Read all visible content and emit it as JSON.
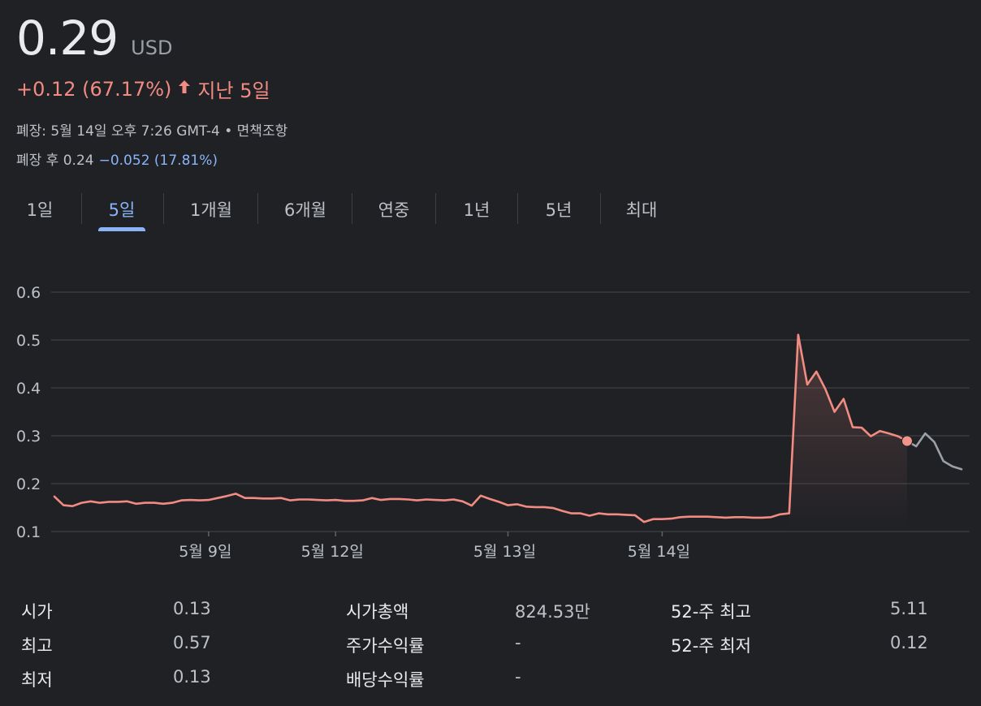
{
  "quote": {
    "price": "0.29",
    "currency": "USD",
    "change": "+0.12 (67.17%)",
    "period": "지난 5일",
    "close_info": "폐장: 5월 14일 오후 7:26 GMT-4 • 면책조항",
    "after_hours_label": "폐장 후 0.24",
    "after_hours_change": "−0.052 (17.81%)"
  },
  "tabs": [
    "1일",
    "5일",
    "1개월",
    "6개월",
    "연중",
    "1년",
    "5년",
    "최대"
  ],
  "active_tab": 1,
  "colors": {
    "background": "#1f2125",
    "up": "#f28b82",
    "accent": "#8ab4f8",
    "after_hours_line": "#9aa0a6",
    "grid": "#3c4043"
  },
  "chart_data": {
    "type": "line",
    "title": "",
    "xlabel": "",
    "ylabel": "",
    "ylim": [
      0.1,
      0.6
    ],
    "yticks": [
      "0.6",
      "0.5",
      "0.4",
      "0.3",
      "0.2",
      "0.1"
    ],
    "xticks": [
      {
        "label": "5월 9일",
        "index": 17
      },
      {
        "label": "5월 12일",
        "index": 31
      },
      {
        "label": "5월 13일",
        "index": 50
      },
      {
        "label": "5월 14일",
        "index": 67
      }
    ],
    "grid": "horizontal",
    "series": [
      {
        "values": [
          0.173,
          0.155,
          0.153,
          0.16,
          0.163,
          0.16,
          0.162,
          0.162,
          0.163,
          0.158,
          0.16,
          0.16,
          0.158,
          0.16,
          0.165,
          0.166,
          0.165,
          0.166,
          0.17,
          0.174,
          0.179,
          0.17,
          0.17,
          0.169,
          0.169,
          0.17,
          0.165,
          0.167,
          0.167,
          0.166,
          0.165,
          0.166,
          0.164,
          0.164,
          0.165,
          0.17,
          0.166,
          0.168,
          0.168,
          0.167,
          0.165,
          0.167,
          0.166,
          0.165,
          0.167,
          0.163,
          0.154,
          0.175,
          0.168,
          0.162,
          0.155,
          0.157,
          0.152,
          0.151,
          0.151,
          0.149,
          0.143,
          0.138,
          0.138,
          0.133,
          0.138,
          0.136,
          0.136,
          0.135,
          0.134,
          0.12,
          0.126,
          0.126,
          0.127,
          0.13,
          0.131,
          0.131,
          0.131,
          0.13,
          0.129,
          0.13,
          0.13,
          0.129,
          0.129,
          0.13,
          0.136,
          0.138,
          0.511,
          0.407,
          0.434,
          0.397,
          0.35,
          0.377,
          0.318,
          0.317,
          0.299,
          0.31,
          0.305,
          0.299,
          0.289
        ],
        "after_hours": [
          0.289,
          0.278,
          0.305,
          0.287,
          0.247,
          0.236,
          0.23
        ],
        "last_value": 0.289
      }
    ]
  },
  "stats": {
    "rows": [
      [
        {
          "label": "시가",
          "value": "0.13"
        },
        {
          "label": "시가총액",
          "value": "824.53만"
        },
        {
          "label": "52-주 최고",
          "value": "5.11"
        }
      ],
      [
        {
          "label": "최고",
          "value": "0.57"
        },
        {
          "label": "주가수익률",
          "value": "-"
        },
        {
          "label": "52-주 최저",
          "value": "0.12"
        }
      ],
      [
        {
          "label": "최저",
          "value": "0.13"
        },
        {
          "label": "배당수익률",
          "value": "-"
        }
      ]
    ]
  }
}
